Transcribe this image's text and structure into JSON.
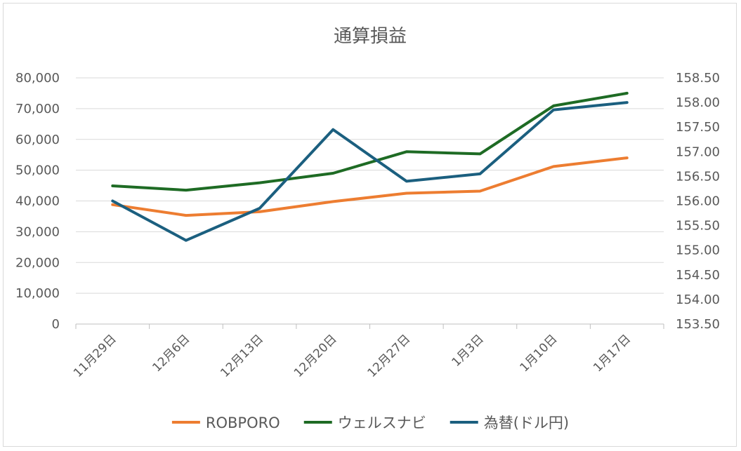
{
  "chart_data": {
    "type": "line",
    "title": "通算損益",
    "categories": [
      "11月29日",
      "12月6日",
      "12月13日",
      "12月20日",
      "12月27日",
      "1月3日",
      "1月10日",
      "1月17日"
    ],
    "y_left": {
      "ylim": [
        0,
        80000
      ],
      "ticks": [
        0,
        10000,
        20000,
        30000,
        40000,
        50000,
        60000,
        70000,
        80000
      ],
      "tick_labels": [
        "0",
        "10,000",
        "20,000",
        "30,000",
        "40,000",
        "50,000",
        "60,000",
        "70,000",
        "80,000"
      ]
    },
    "y_right": {
      "ylim": [
        153.5,
        158.5
      ],
      "ticks": [
        153.5,
        154.0,
        154.5,
        155.0,
        155.5,
        156.0,
        156.5,
        157.0,
        157.5,
        158.0,
        158.5
      ],
      "tick_labels": [
        "153.50",
        "154.00",
        "154.50",
        "155.00",
        "155.50",
        "156.00",
        "156.50",
        "157.00",
        "157.50",
        "158.00",
        "158.50"
      ]
    },
    "series": [
      {
        "name": "ROBPORO",
        "axis": "left",
        "color": "#ed7d31",
        "values": [
          38800,
          35300,
          36500,
          39800,
          42500,
          43200,
          51200,
          54000
        ]
      },
      {
        "name": "ウェルスナビ",
        "axis": "left",
        "color": "#1e6b24",
        "values": [
          44900,
          43500,
          45900,
          49000,
          56000,
          55300,
          70900,
          75000
        ]
      },
      {
        "name": "為替(ドル円)",
        "axis": "right",
        "color": "#1b5f7f",
        "values": [
          156.0,
          155.2,
          155.85,
          157.45,
          156.4,
          156.55,
          157.85,
          158.0
        ]
      }
    ],
    "legend_position": "bottom",
    "grid": true
  }
}
